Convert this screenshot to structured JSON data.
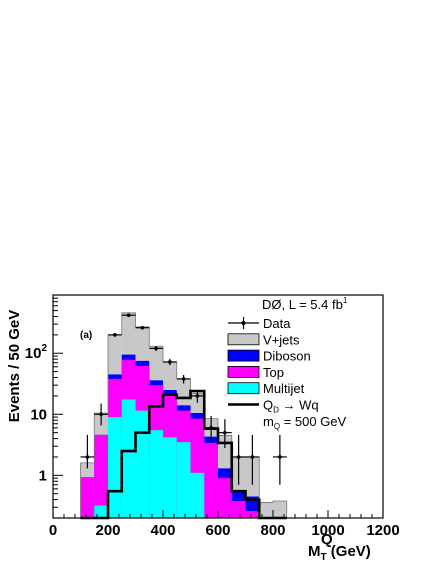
{
  "chart_data": {
    "type": "bar",
    "subtype": "stacked-histogram-log",
    "title": "",
    "panel_label": "(a)",
    "experiment_label": "DØ, L = 5.4 fb",
    "experiment_label_sup": "1",
    "xlabel": {
      "main": "M",
      "sub": "T",
      "sup": "Q",
      "unit": " (GeV)"
    },
    "ylabel": "Events / 50 GeV",
    "xlim": [
      0,
      1200
    ],
    "ylim": [
      0.2,
      900
    ],
    "yscale": "log",
    "xticks": [
      0,
      200,
      400,
      600,
      800,
      1000,
      1200
    ],
    "yticks": [
      {
        "value": 1,
        "base": "1",
        "exp": ""
      },
      {
        "value": 10,
        "base": "10",
        "exp": ""
      },
      {
        "value": 100,
        "base": "10",
        "exp": "2"
      }
    ],
    "bin_edges": [
      100,
      150,
      200,
      250,
      300,
      350,
      400,
      450,
      500,
      550,
      600,
      650,
      700,
      750,
      800,
      850
    ],
    "stack": [
      {
        "name": "Multijet",
        "color": "#00ffff",
        "values": [
          0.12,
          0.32,
          9.0,
          17.5,
          11.5,
          5.5,
          4.2,
          3.5,
          1.1,
          0.12,
          0.12,
          0.12,
          0.12,
          0.12,
          0.12
        ]
      },
      {
        "name": "Top",
        "color": "#ff00ff",
        "values": [
          0.93,
          4.6,
          38,
          78,
          62,
          30,
          20,
          11.5,
          8.5,
          3.4,
          0.9,
          0.38,
          0.26,
          0.12,
          0.12
        ]
      },
      {
        "name": "Diboson",
        "color": "#0000ff",
        "values": [
          0.93,
          4.6,
          45,
          95,
          75,
          36,
          25,
          14,
          10.5,
          4.3,
          1.3,
          0.55,
          0.45,
          0.12,
          0.12
        ]
      },
      {
        "name": "V+jets",
        "color": "#c8c8c8",
        "values": [
          1.6,
          10.5,
          200,
          460,
          270,
          130,
          72,
          38,
          22,
          8.5,
          4.5,
          2.0,
          2.0,
          0.36,
          0.38
        ]
      }
    ],
    "signal": {
      "name": "Q_D → Wq",
      "values": [
        0.12,
        0.12,
        0.55,
        2.5,
        5.0,
        13.5,
        21,
        18.5,
        24,
        5.8,
        3.4,
        0.55,
        0.4,
        0.12,
        0.12
      ]
    },
    "data_points": [
      {
        "x": 125,
        "y": 2.0,
        "err_lo": 1.3,
        "err_hi": 4.6
      },
      {
        "x": 175,
        "y": 10.0,
        "err_lo": 6.6,
        "err_hi": 14.9
      },
      {
        "x": 225,
        "y": 200,
        "err_lo": 186,
        "err_hi": 214
      },
      {
        "x": 275,
        "y": 420,
        "err_lo": 400,
        "err_hi": 441
      },
      {
        "x": 325,
        "y": 262,
        "err_lo": 246,
        "err_hi": 279
      },
      {
        "x": 375,
        "y": 120,
        "err_lo": 109,
        "err_hi": 131
      },
      {
        "x": 425,
        "y": 72,
        "err_lo": 64,
        "err_hi": 81
      },
      {
        "x": 475,
        "y": 38,
        "err_lo": 32,
        "err_hi": 44
      },
      {
        "x": 525,
        "y": 20,
        "err_lo": 15.5,
        "err_hi": 25
      },
      {
        "x": 575,
        "y": 6.0,
        "err_lo": 3.6,
        "err_hi": 9.4
      },
      {
        "x": 625,
        "y": 5.0,
        "err_lo": 2.8,
        "err_hi": 8.3
      },
      {
        "x": 675,
        "y": 2.0,
        "err_lo": 0.7,
        "err_hi": 4.6
      },
      {
        "x": 725,
        "y": 2.0,
        "err_lo": 0.7,
        "err_hi": 4.6
      },
      {
        "x": 825,
        "y": 2.0,
        "err_lo": 0.7,
        "err_hi": 4.6
      }
    ],
    "legend": {
      "placement": "top-right",
      "entries": [
        {
          "label": "Data",
          "kind": "data"
        },
        {
          "label": "V+jets",
          "kind": "fill",
          "color": "#c8c8c8"
        },
        {
          "label": "Diboson",
          "kind": "fill",
          "color": "#0000ff"
        },
        {
          "label": "Top",
          "kind": "fill",
          "color": "#ff00ff"
        },
        {
          "label": "Multijet",
          "kind": "fill",
          "color": "#00ffff"
        },
        {
          "label": "Q",
          "sub": "D",
          "rest": " → Wq",
          "kind": "line"
        }
      ],
      "mass_note": {
        "main": "m",
        "sub": "Q",
        "rest": " = 500 GeV"
      }
    },
    "grid": false
  }
}
